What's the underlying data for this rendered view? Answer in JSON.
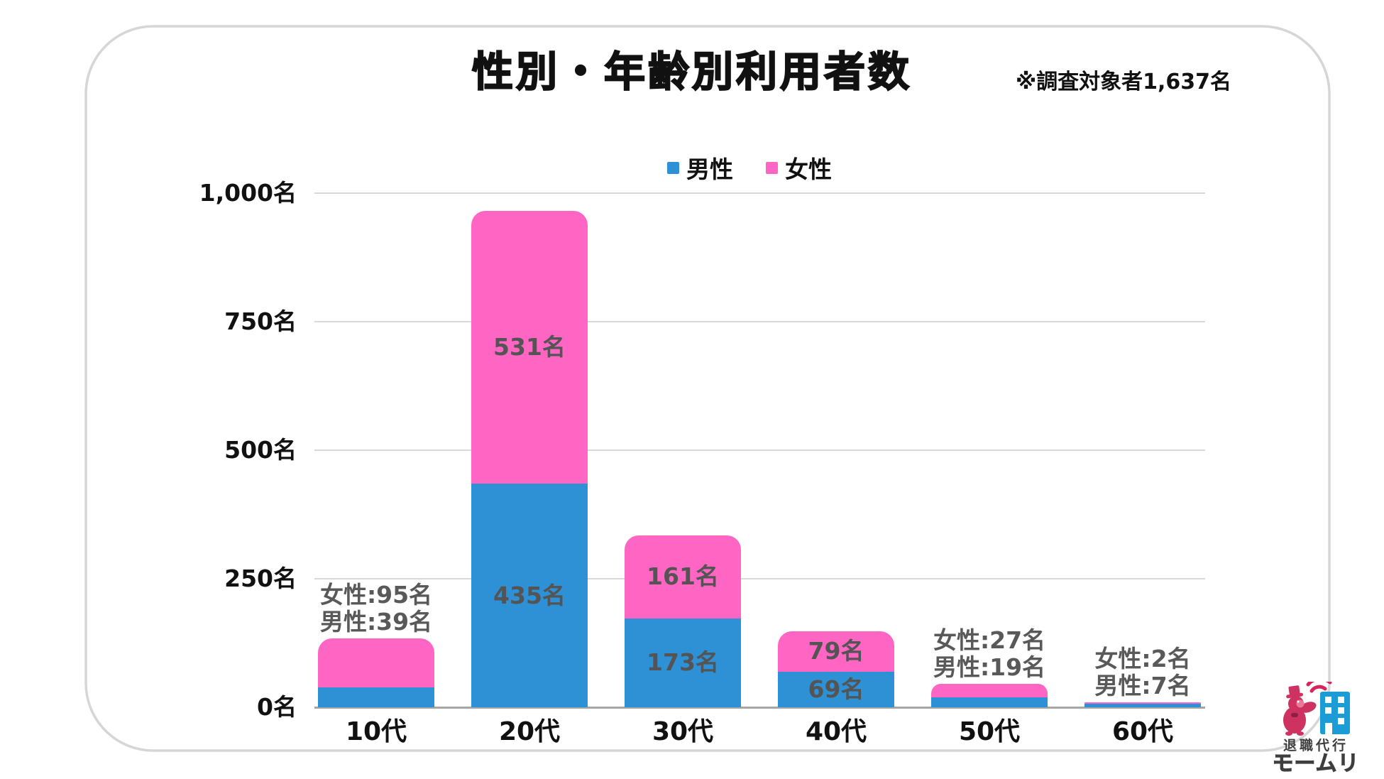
{
  "title": "性別・年齢別利用者数",
  "note": "※調査対象者1,637名",
  "legend": {
    "male": "男性",
    "female": "女性"
  },
  "colors": {
    "male": "#2E90D5",
    "female": "#FF66C4",
    "grid": "#D9D9D9",
    "axis": "#A6A6A6",
    "label_gray": "#595959",
    "text": "#111111",
    "border": "#D6D6D6",
    "logo_red": "#CE3261",
    "logo_blue": "#1C9CD6",
    "logo_text": "#3E3E3E"
  },
  "chart_data": {
    "type": "bar",
    "stacked": true,
    "title": "性別・年齢別利用者数",
    "categories": [
      "10代",
      "20代",
      "30代",
      "40代",
      "50代",
      "60代"
    ],
    "series": [
      {
        "name": "男性",
        "color_key": "male",
        "values": [
          39,
          435,
          173,
          69,
          19,
          7
        ]
      },
      {
        "name": "女性",
        "color_key": "female",
        "values": [
          95,
          531,
          161,
          79,
          27,
          2
        ]
      }
    ],
    "ylim": [
      0,
      1000
    ],
    "yticks": [
      {
        "value": 0,
        "label": "0名"
      },
      {
        "value": 250,
        "label": "250名"
      },
      {
        "value": 500,
        "label": "500名"
      },
      {
        "value": 750,
        "label": "750名"
      },
      {
        "value": 1000,
        "label": "1,000名"
      }
    ],
    "grid": true,
    "legend_position": "top",
    "labels": [
      {
        "category": "10代",
        "mode": "outside",
        "lines": [
          "女性:95名",
          "男性:39名"
        ]
      },
      {
        "category": "20代",
        "mode": "inside",
        "female": "531名",
        "male": "435名"
      },
      {
        "category": "30代",
        "mode": "inside",
        "female": "161名",
        "male": "173名"
      },
      {
        "category": "40代",
        "mode": "inside",
        "female": "79名",
        "male": "69名"
      },
      {
        "category": "50代",
        "mode": "outside",
        "lines": [
          "女性:27名",
          "男性:19名"
        ]
      },
      {
        "category": "60代",
        "mode": "outside",
        "lines": [
          "女性:2名",
          "男性:7名"
        ]
      }
    ]
  },
  "logo": {
    "service": "退職代行",
    "brand": "モームリ"
  }
}
